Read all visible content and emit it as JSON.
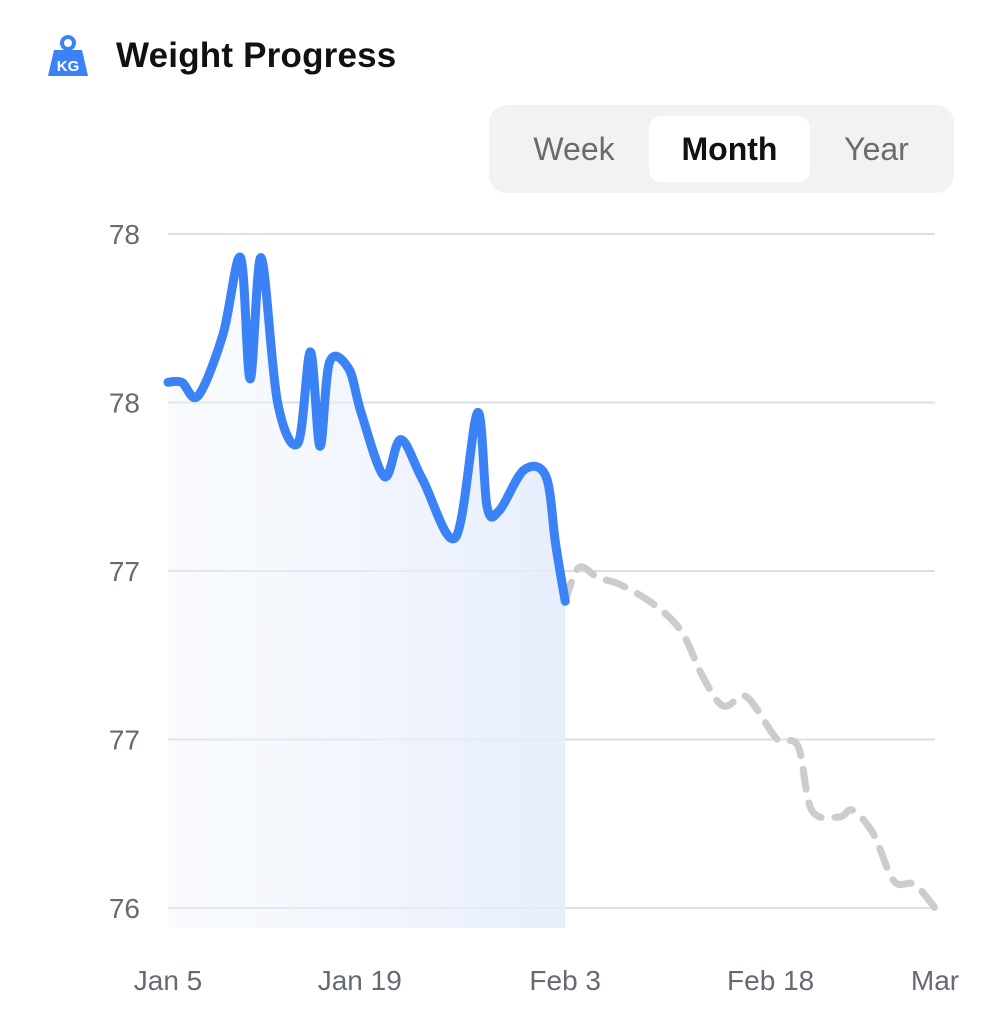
{
  "header": {
    "title": "Weight Progress",
    "icon": "kg-weight-icon",
    "icon_text": "KG",
    "icon_color": "#3b82f6"
  },
  "range_selector": {
    "options": [
      "Week",
      "Month",
      "Year"
    ],
    "selected": "Month"
  },
  "chart_data": {
    "type": "line",
    "y_tick_labels": [
      "78",
      "78",
      "77",
      "77",
      "76"
    ],
    "y_tick_values": [
      78.0,
      77.5,
      77.0,
      76.5,
      76.0
    ],
    "ylim": [
      76.0,
      78.0
    ],
    "x_tick_labels": [
      "Jan 5",
      "Jan 19",
      "Feb 3",
      "Feb 18",
      "Mar"
    ],
    "x_tick_days": [
      0,
      14,
      29,
      44,
      56
    ],
    "xlim": [
      0,
      56
    ],
    "grid": true,
    "series": [
      {
        "kind": "actual",
        "color": "#3b82f6",
        "style": "solid",
        "area_fill": true,
        "x": [
          0,
          1,
          2.2,
          4,
          5.3,
          6,
          6.8,
          8,
          9.5,
          10.4,
          11.1,
          11.8,
          13.2,
          14.1,
          15.8,
          17,
          18.6,
          21,
          22.6,
          23.3,
          24.2,
          26,
          27.6,
          28.3,
          29
        ],
        "y": [
          77.56,
          77.56,
          77.52,
          77.7,
          77.93,
          77.57,
          77.93,
          77.5,
          77.38,
          77.65,
          77.37,
          77.62,
          77.6,
          77.47,
          77.28,
          77.39,
          77.27,
          77.1,
          77.47,
          77.19,
          77.18,
          77.3,
          77.28,
          77.08,
          76.91
        ]
      },
      {
        "kind": "projection",
        "color": "#cccccc",
        "style": "dashed",
        "area_fill": false,
        "x": [
          29,
          30,
          31.4,
          33,
          35.5,
          37.5,
          39,
          40.5,
          42,
          43,
          44.5,
          46,
          47,
          49,
          50,
          51.5,
          53,
          54.5,
          56
        ],
        "y": [
          76.91,
          77.01,
          76.98,
          76.96,
          76.9,
          76.82,
          76.69,
          76.6,
          76.63,
          76.59,
          76.5,
          76.48,
          76.29,
          76.27,
          76.29,
          76.22,
          76.08,
          76.07,
          76.0
        ]
      }
    ]
  }
}
